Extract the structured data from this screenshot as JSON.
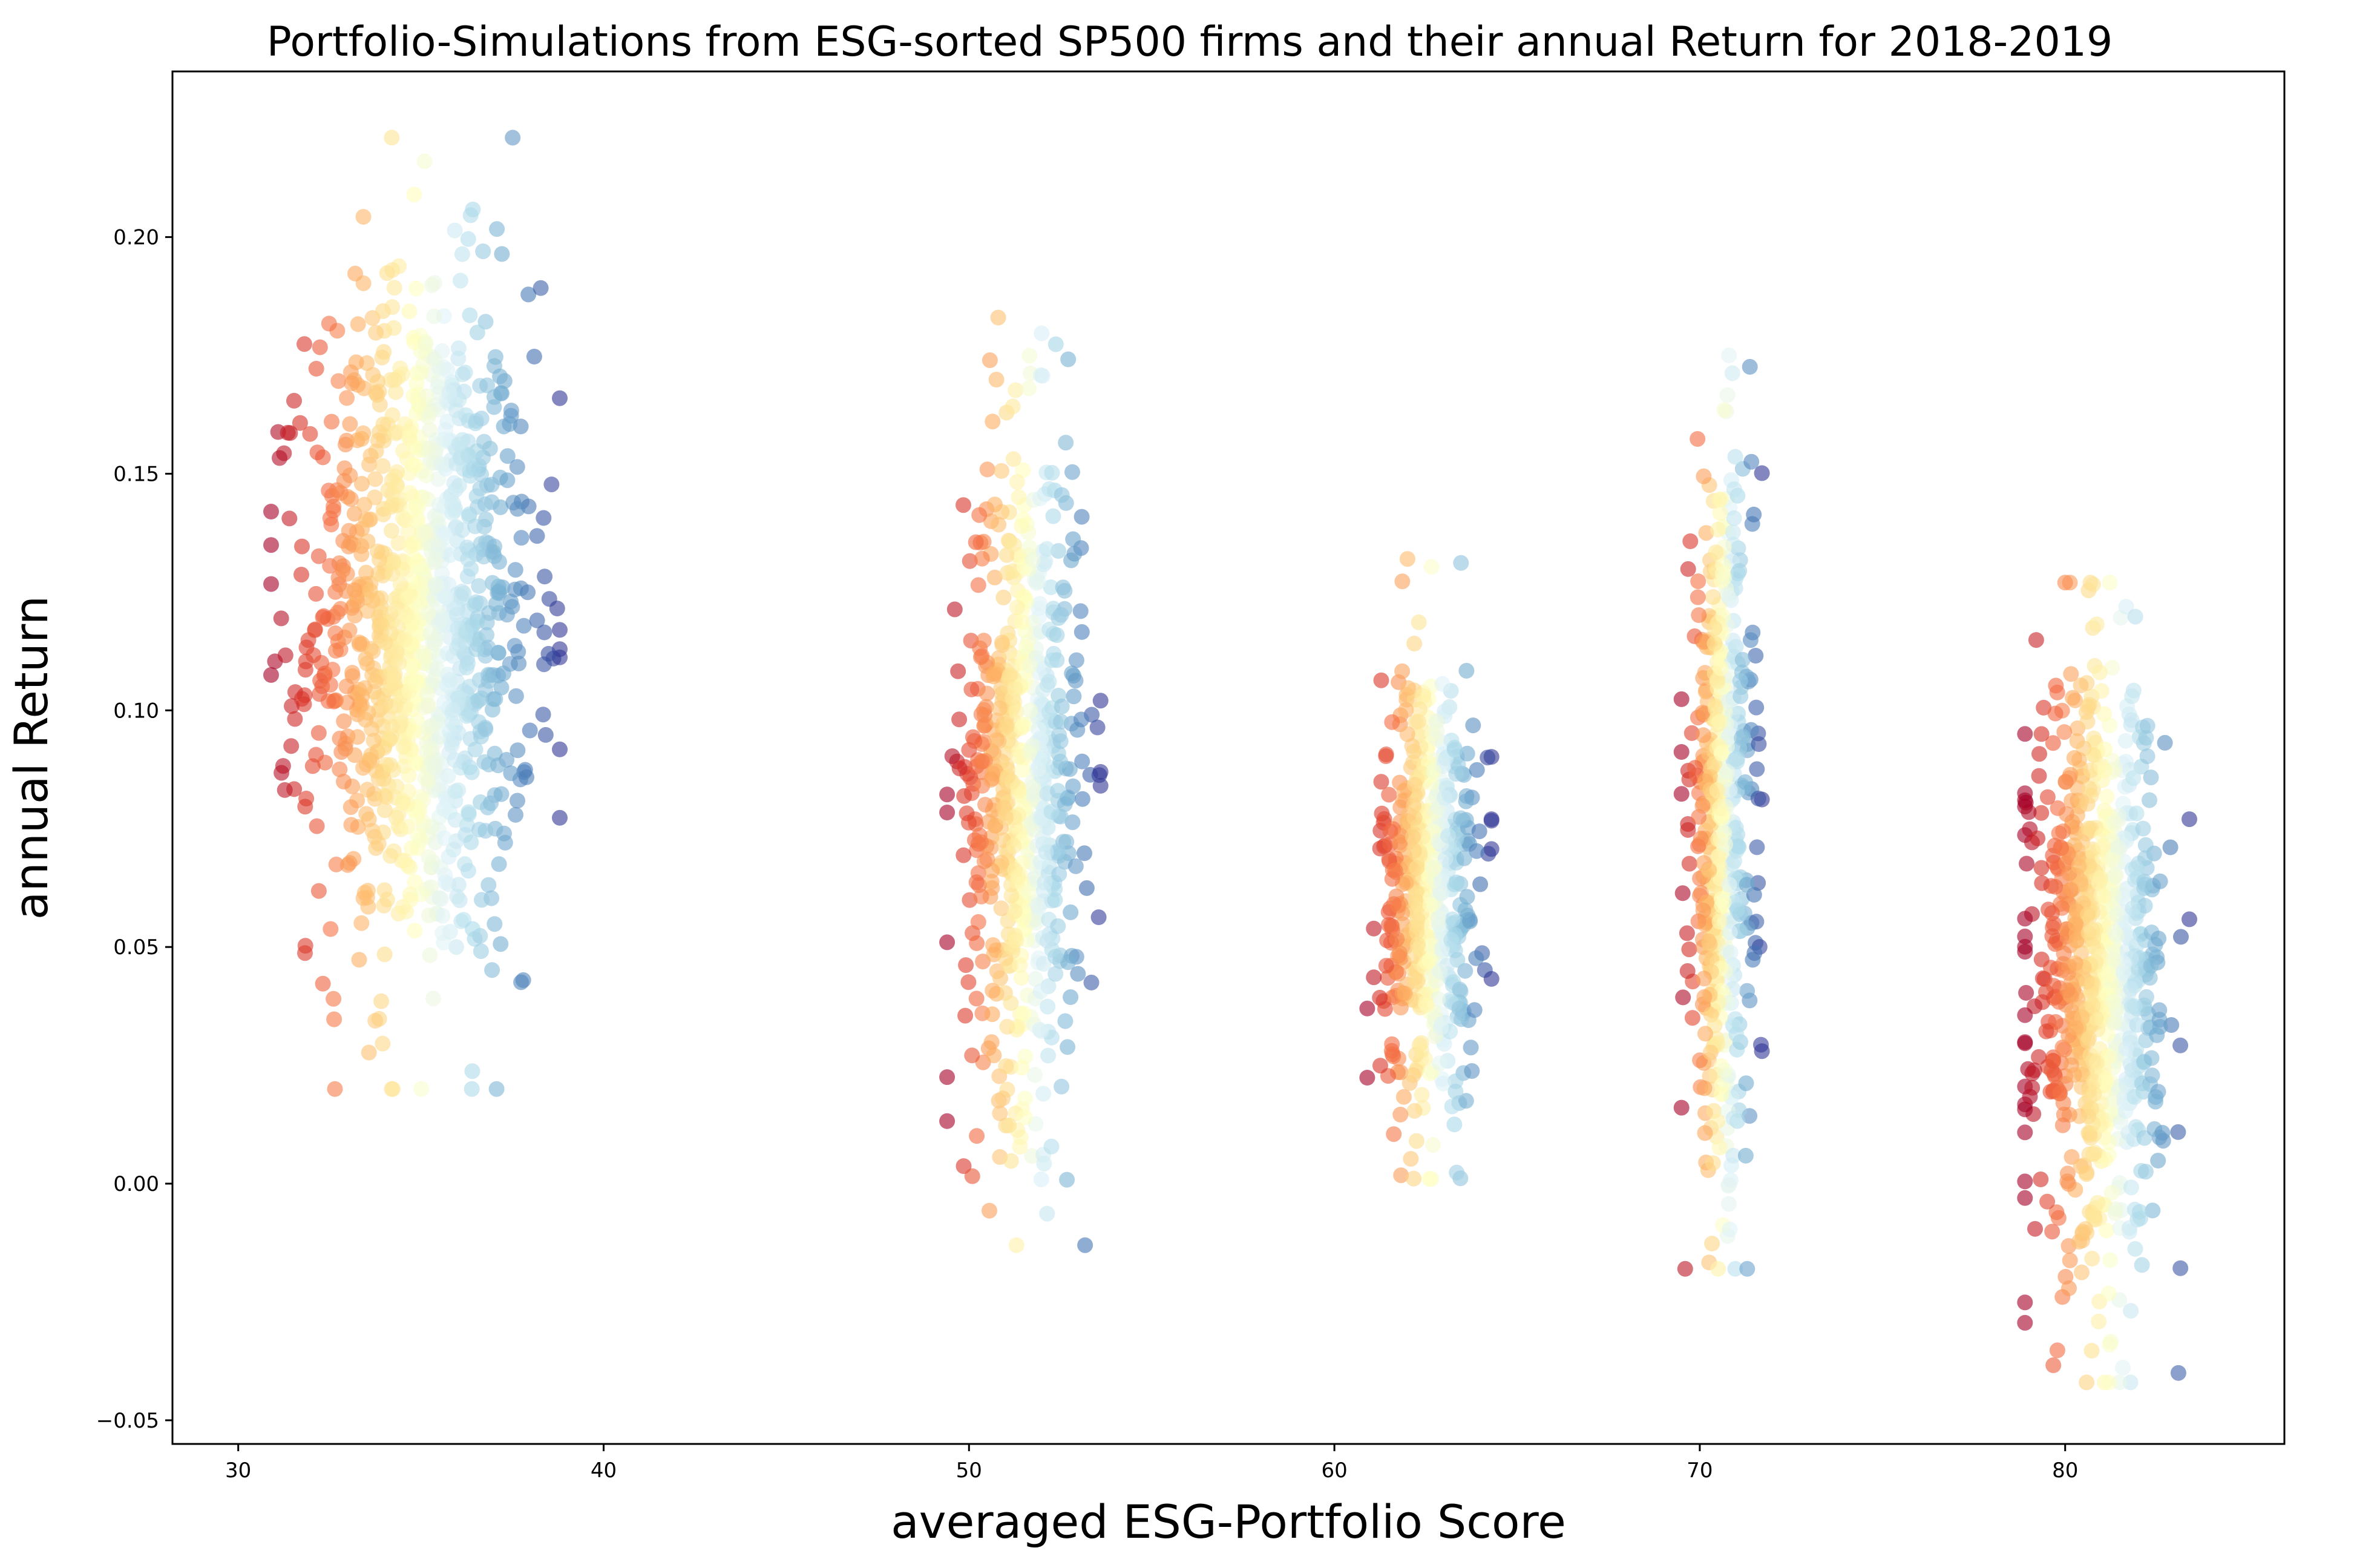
{
  "chart_data": {
    "type": "scatter",
    "title": "Portfolio-Simulations from ESG-sorted SP500 firms and their annual Return for 2018-2019",
    "xlabel": "averaged ESG-Portfolio Score",
    "ylabel": "annual Return",
    "xlim": [
      28.2,
      86.0
    ],
    "ylim": [
      -0.055,
      0.235
    ],
    "x_ticks": [
      30,
      40,
      50,
      60,
      70,
      80
    ],
    "x_tick_labels": [
      "30",
      "40",
      "50",
      "60",
      "70",
      "80"
    ],
    "y_ticks": [
      -0.05,
      0.0,
      0.05,
      0.1,
      0.15,
      0.2
    ],
    "y_tick_labels": [
      "−0.05",
      "0.00",
      "0.05",
      "0.10",
      "0.15",
      "0.20"
    ],
    "grid": false,
    "legend": "none",
    "colormap": "RdYlBu (color by x within each cluster)",
    "colormap_stops": [
      "#a50026",
      "#d73027",
      "#f46d43",
      "#fdae61",
      "#fee090",
      "#ffffbf",
      "#e0f3f8",
      "#abd9e9",
      "#74add1",
      "#4575b4",
      "#313695"
    ],
    "point_alpha": 0.6,
    "clusters": [
      {
        "x_center": 35.0,
        "x_min": 30.9,
        "x_max": 38.8,
        "y_center": 0.118,
        "y_min": 0.02,
        "y_max": 0.221,
        "n": 1100
      },
      {
        "x_center": 51.5,
        "x_min": 49.4,
        "x_max": 53.6,
        "y_center": 0.087,
        "y_min": -0.013,
        "y_max": 0.183,
        "n": 650
      },
      {
        "x_center": 62.6,
        "x_min": 60.9,
        "x_max": 64.3,
        "y_center": 0.063,
        "y_min": 0.001,
        "y_max": 0.132,
        "n": 550
      },
      {
        "x_center": 70.6,
        "x_min": 69.5,
        "x_max": 71.7,
        "y_center": 0.075,
        "y_min": -0.018,
        "y_max": 0.175,
        "n": 600
      },
      {
        "x_center": 80.9,
        "x_min": 78.9,
        "x_max": 83.4,
        "y_center": 0.045,
        "y_min": -0.042,
        "y_max": 0.127,
        "n": 800
      }
    ],
    "extreme_points": [
      {
        "x": 34.2,
        "y": 0.221
      },
      {
        "x": 35.1,
        "y": 0.216
      },
      {
        "x": 34.2,
        "y": 0.02
      },
      {
        "x": 30.9,
        "y": 0.142
      },
      {
        "x": 38.8,
        "y": 0.117
      },
      {
        "x": 36.7,
        "y": 0.197
      },
      {
        "x": 37.8,
        "y": 0.043
      },
      {
        "x": 50.8,
        "y": 0.183
      },
      {
        "x": 51.3,
        "y": -0.013
      },
      {
        "x": 49.4,
        "y": 0.051
      },
      {
        "x": 53.6,
        "y": 0.087
      },
      {
        "x": 62.0,
        "y": 0.132
      },
      {
        "x": 60.9,
        "y": 0.037
      },
      {
        "x": 64.3,
        "y": 0.077
      },
      {
        "x": 62.6,
        "y": 0.001
      },
      {
        "x": 70.8,
        "y": 0.175
      },
      {
        "x": 69.6,
        "y": -0.018
      },
      {
        "x": 71.7,
        "y": 0.028
      },
      {
        "x": 80.0,
        "y": 0.127
      },
      {
        "x": 81.2,
        "y": -0.042
      },
      {
        "x": 83.4,
        "y": 0.077
      },
      {
        "x": 83.1,
        "y": -0.04
      },
      {
        "x": 78.9,
        "y": 0.081
      }
    ]
  }
}
